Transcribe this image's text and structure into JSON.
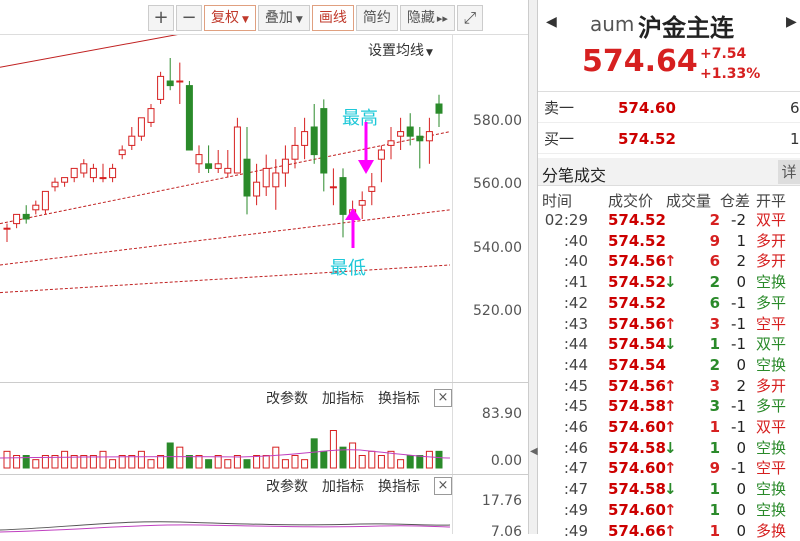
{
  "toolbar": {
    "plus": "+",
    "minus": "−",
    "fuquan": "复权",
    "diejia": "叠加",
    "huaxian": "画线",
    "jianyue": "简约",
    "yincang": "隐藏",
    "yincang_arrow": "▸▸",
    "fullscreen": "⤢"
  },
  "chart": {
    "ma_settings": "设置均线",
    "y_axis_labels": [
      "580.00",
      "560.00",
      "540.00",
      "520.00"
    ],
    "annotation_high": "最高",
    "annotation_low": "最低",
    "sub1": {
      "btn_params": "改参数",
      "btn_add": "加指标",
      "btn_switch": "换指标",
      "close": "×",
      "top_value": "83.90",
      "bottom_value": "0.00"
    },
    "sub2": {
      "btn_params": "改参数",
      "btn_add": "加指标",
      "btn_switch": "换指标",
      "close": "×",
      "top_value": "17.76",
      "bottom_value": "7.06"
    }
  },
  "chart_data": {
    "type": "candlestick",
    "ylim": [
      515,
      590
    ],
    "candles": [
      [
        548,
        549,
        545,
        548
      ],
      [
        549,
        551,
        548,
        551
      ],
      [
        551,
        553,
        549,
        550
      ],
      [
        552,
        554,
        551,
        553
      ],
      [
        552,
        556,
        551,
        556
      ],
      [
        557,
        559,
        556,
        558
      ],
      [
        558,
        559,
        557,
        559
      ],
      [
        559,
        561,
        558,
        561
      ],
      [
        560,
        563,
        559,
        562
      ],
      [
        559,
        562,
        558,
        561
      ],
      [
        559,
        562,
        558,
        559
      ],
      [
        559,
        562,
        558,
        561
      ],
      [
        564,
        566,
        563,
        565
      ],
      [
        566,
        570,
        565,
        568
      ],
      [
        568,
        572,
        567,
        572
      ],
      [
        571,
        575,
        570,
        574
      ],
      [
        576,
        582,
        575,
        581
      ],
      [
        580,
        585,
        578,
        579
      ],
      [
        580,
        584,
        575,
        580
      ],
      [
        579,
        580,
        565,
        565
      ],
      [
        562,
        566,
        560,
        564
      ],
      [
        562,
        566,
        560,
        561
      ],
      [
        561,
        565,
        560,
        562
      ],
      [
        560,
        565,
        559,
        561
      ],
      [
        560,
        572,
        560,
        570
      ],
      [
        563,
        570,
        551,
        555
      ],
      [
        555,
        562,
        553,
        558
      ],
      [
        557,
        564,
        555,
        561
      ],
      [
        557,
        563,
        552,
        560
      ],
      [
        560,
        566,
        557,
        563
      ],
      [
        563,
        570,
        561,
        566
      ],
      [
        566,
        572,
        563,
        569
      ],
      [
        570,
        575,
        562,
        564
      ],
      [
        574,
        576,
        556,
        560
      ],
      [
        557,
        561,
        553,
        557
      ],
      [
        559,
        561,
        546,
        551
      ],
      [
        551,
        554,
        548,
        552
      ],
      [
        553,
        556,
        550,
        554
      ],
      [
        556,
        560,
        553,
        557
      ],
      [
        563,
        566,
        558,
        565
      ],
      [
        566,
        570,
        563,
        567
      ],
      [
        568,
        572,
        565,
        569
      ],
      [
        570,
        573,
        566,
        568
      ],
      [
        568,
        570,
        561,
        567
      ],
      [
        567,
        572,
        562,
        569
      ],
      [
        575,
        577,
        570,
        573
      ]
    ],
    "volume": [
      4,
      3,
      3,
      2,
      3,
      3,
      4,
      3,
      3,
      3,
      4,
      2,
      3,
      3,
      4,
      2,
      3,
      6,
      5,
      3,
      3,
      2,
      3,
      2,
      3,
      2,
      3,
      3,
      5,
      2,
      3,
      2,
      7,
      4,
      9,
      5,
      6,
      3,
      4,
      3,
      4,
      2,
      3,
      3,
      4,
      4
    ]
  },
  "quote": {
    "back": "◀",
    "fwd": "▶",
    "code": "aum",
    "name": "沪金主连",
    "price": "574.64",
    "change": "+7.54",
    "pct": "+1.33%",
    "ask_label": "卖一",
    "ask_price": "574.60",
    "ask_vol": "6",
    "bid_label": "买一",
    "bid_price": "574.52",
    "bid_vol": "1",
    "trades_title": "分笔成交",
    "detail": "详",
    "head_time": "时间",
    "head_price": "成交价",
    "head_vol": "成交量",
    "head_oi": "仓差",
    "head_type": "开平"
  },
  "trades": [
    {
      "time": "02:29",
      "price": "574.52",
      "dir": "",
      "vol": "2",
      "oi": "-2",
      "type": "双平",
      "side": "up"
    },
    {
      "time": ":40",
      "price": "574.52",
      "dir": "",
      "vol": "9",
      "oi": "1",
      "type": "多开",
      "side": "up"
    },
    {
      "time": ":40",
      "price": "574.56",
      "dir": "↑",
      "vol": "6",
      "oi": "2",
      "type": "多开",
      "side": "up"
    },
    {
      "time": ":41",
      "price": "574.52",
      "dir": "↓",
      "vol": "2",
      "oi": "0",
      "type": "空换",
      "side": "down"
    },
    {
      "time": ":42",
      "price": "574.52",
      "dir": "",
      "vol": "6",
      "oi": "-1",
      "type": "多平",
      "side": "down"
    },
    {
      "time": ":43",
      "price": "574.56",
      "dir": "↑",
      "vol": "3",
      "oi": "-1",
      "type": "空平",
      "side": "up"
    },
    {
      "time": ":44",
      "price": "574.54",
      "dir": "↓",
      "vol": "1",
      "oi": "-1",
      "type": "双平",
      "side": "down"
    },
    {
      "time": ":44",
      "price": "574.54",
      "dir": "",
      "vol": "2",
      "oi": "0",
      "type": "空换",
      "side": "down"
    },
    {
      "time": ":45",
      "price": "574.56",
      "dir": "↑",
      "vol": "3",
      "oi": "2",
      "type": "多开",
      "side": "up"
    },
    {
      "time": ":45",
      "price": "574.58",
      "dir": "↑",
      "vol": "3",
      "oi": "-1",
      "type": "多平",
      "side": "down"
    },
    {
      "time": ":46",
      "price": "574.60",
      "dir": "↑",
      "vol": "1",
      "oi": "-1",
      "type": "双平",
      "side": "up"
    },
    {
      "time": ":46",
      "price": "574.58",
      "dir": "↓",
      "vol": "1",
      "oi": "0",
      "type": "空换",
      "side": "down"
    },
    {
      "time": ":47",
      "price": "574.60",
      "dir": "↑",
      "vol": "9",
      "oi": "-1",
      "type": "空平",
      "side": "up"
    },
    {
      "time": ":47",
      "price": "574.58",
      "dir": "↓",
      "vol": "1",
      "oi": "0",
      "type": "空换",
      "side": "down"
    },
    {
      "time": ":49",
      "price": "574.60",
      "dir": "↑",
      "vol": "1",
      "oi": "0",
      "type": "空换",
      "side": "down"
    },
    {
      "time": ":49",
      "price": "574.66",
      "dir": "↑",
      "vol": "1",
      "oi": "0",
      "type": "多换",
      "side": "up"
    }
  ],
  "colors": {
    "up": "#d62020",
    "down": "#2a8a2a",
    "annot": "#1ec8d8",
    "arrow": "#ff00ff"
  }
}
